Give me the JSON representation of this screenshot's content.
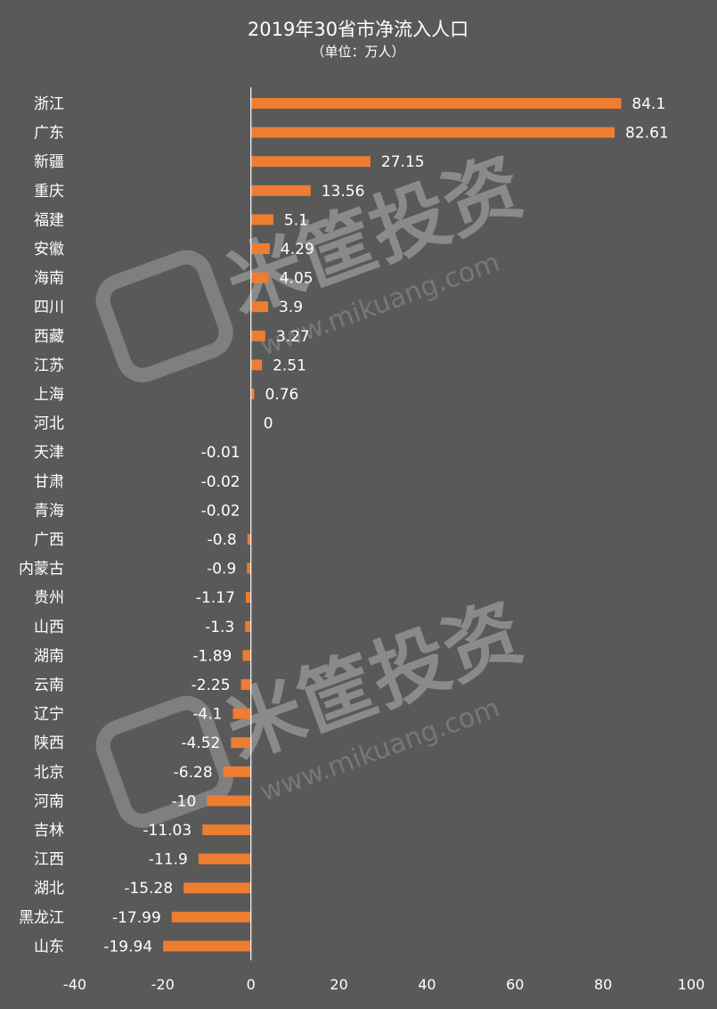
{
  "chart_data": {
    "type": "bar",
    "orientation": "horizontal",
    "title": "2019年30省市净流入人口",
    "subtitle": "（单位：万人）",
    "categories": [
      "浙江",
      "广东",
      "新疆",
      "重庆",
      "福建",
      "安徽",
      "海南",
      "四川",
      "西藏",
      "江苏",
      "上海",
      "河北",
      "天津",
      "甘肃",
      "青海",
      "广西",
      "内蒙古",
      "贵州",
      "山西",
      "湖南",
      "云南",
      "辽宁",
      "陕西",
      "北京",
      "河南",
      "吉林",
      "江西",
      "湖北",
      "黑龙江",
      "山东"
    ],
    "values": [
      84.1,
      82.61,
      27.15,
      13.56,
      5.1,
      4.29,
      4.05,
      3.9,
      3.27,
      2.51,
      0.76,
      0,
      -0.01,
      -0.02,
      -0.02,
      -0.8,
      -0.9,
      -1.17,
      -1.3,
      -1.89,
      -2.25,
      -4.1,
      -4.52,
      -6.28,
      -10,
      -11.03,
      -11.9,
      -15.28,
      -17.99,
      -19.94
    ],
    "value_labels": [
      "84.1",
      "82.61",
      "27.15",
      "13.56",
      "5.1",
      "4.29",
      "4.05",
      "3.9",
      "3.27",
      "2.51",
      "0.76",
      "0",
      "-0.01",
      "-0.02",
      "-0.02",
      "-0.8",
      "-0.9",
      "-1.17",
      "-1.3",
      "-1.89",
      "-2.25",
      "-4.1",
      "-4.52",
      "-6.28",
      "-10",
      "-11.03",
      "-11.9",
      "-15.28",
      "-17.99",
      "-19.94"
    ],
    "xlim": [
      -40,
      100
    ],
    "xticks": [
      "-40",
      "-20",
      "0",
      "20",
      "40",
      "60",
      "80",
      "100"
    ],
    "bar_color": "#ED7D31",
    "background_color": "#595959",
    "grid": false,
    "legend": "none"
  },
  "watermark": {
    "brand": "米筐投资",
    "url": "www.mikuang.com"
  }
}
